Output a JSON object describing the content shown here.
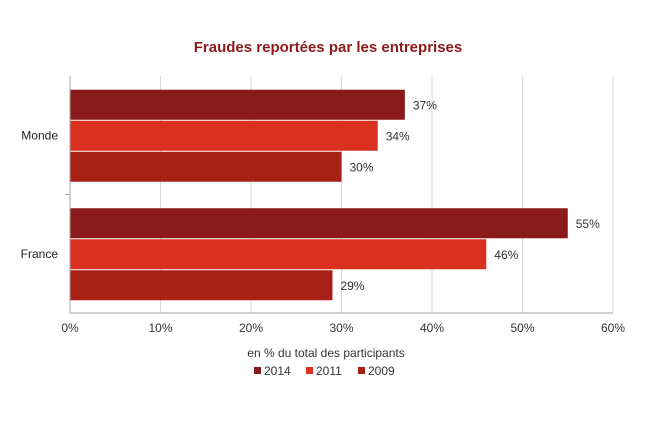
{
  "chart_data": {
    "type": "bar",
    "orientation": "horizontal",
    "title": "Fraudes reportées par les entreprises",
    "xlabel": "en % du total des participants",
    "ylabel": "",
    "xlim": [
      0,
      60
    ],
    "x_ticks": [
      "0%",
      "10%",
      "20%",
      "30%",
      "40%",
      "50%",
      "60%"
    ],
    "grid": true,
    "legend_position": "bottom",
    "value_suffix": "%",
    "categories": [
      "Monde",
      "France"
    ],
    "series": [
      {
        "name": "2014",
        "color": "#8B1A1A",
        "values": [
          37,
          55
        ]
      },
      {
        "name": "2011",
        "color": "#D9301F",
        "values": [
          34,
          46
        ]
      },
      {
        "name": "2009",
        "color": "#A92016",
        "values": [
          30,
          29
        ]
      }
    ],
    "title_color": "#8B1A1A"
  }
}
